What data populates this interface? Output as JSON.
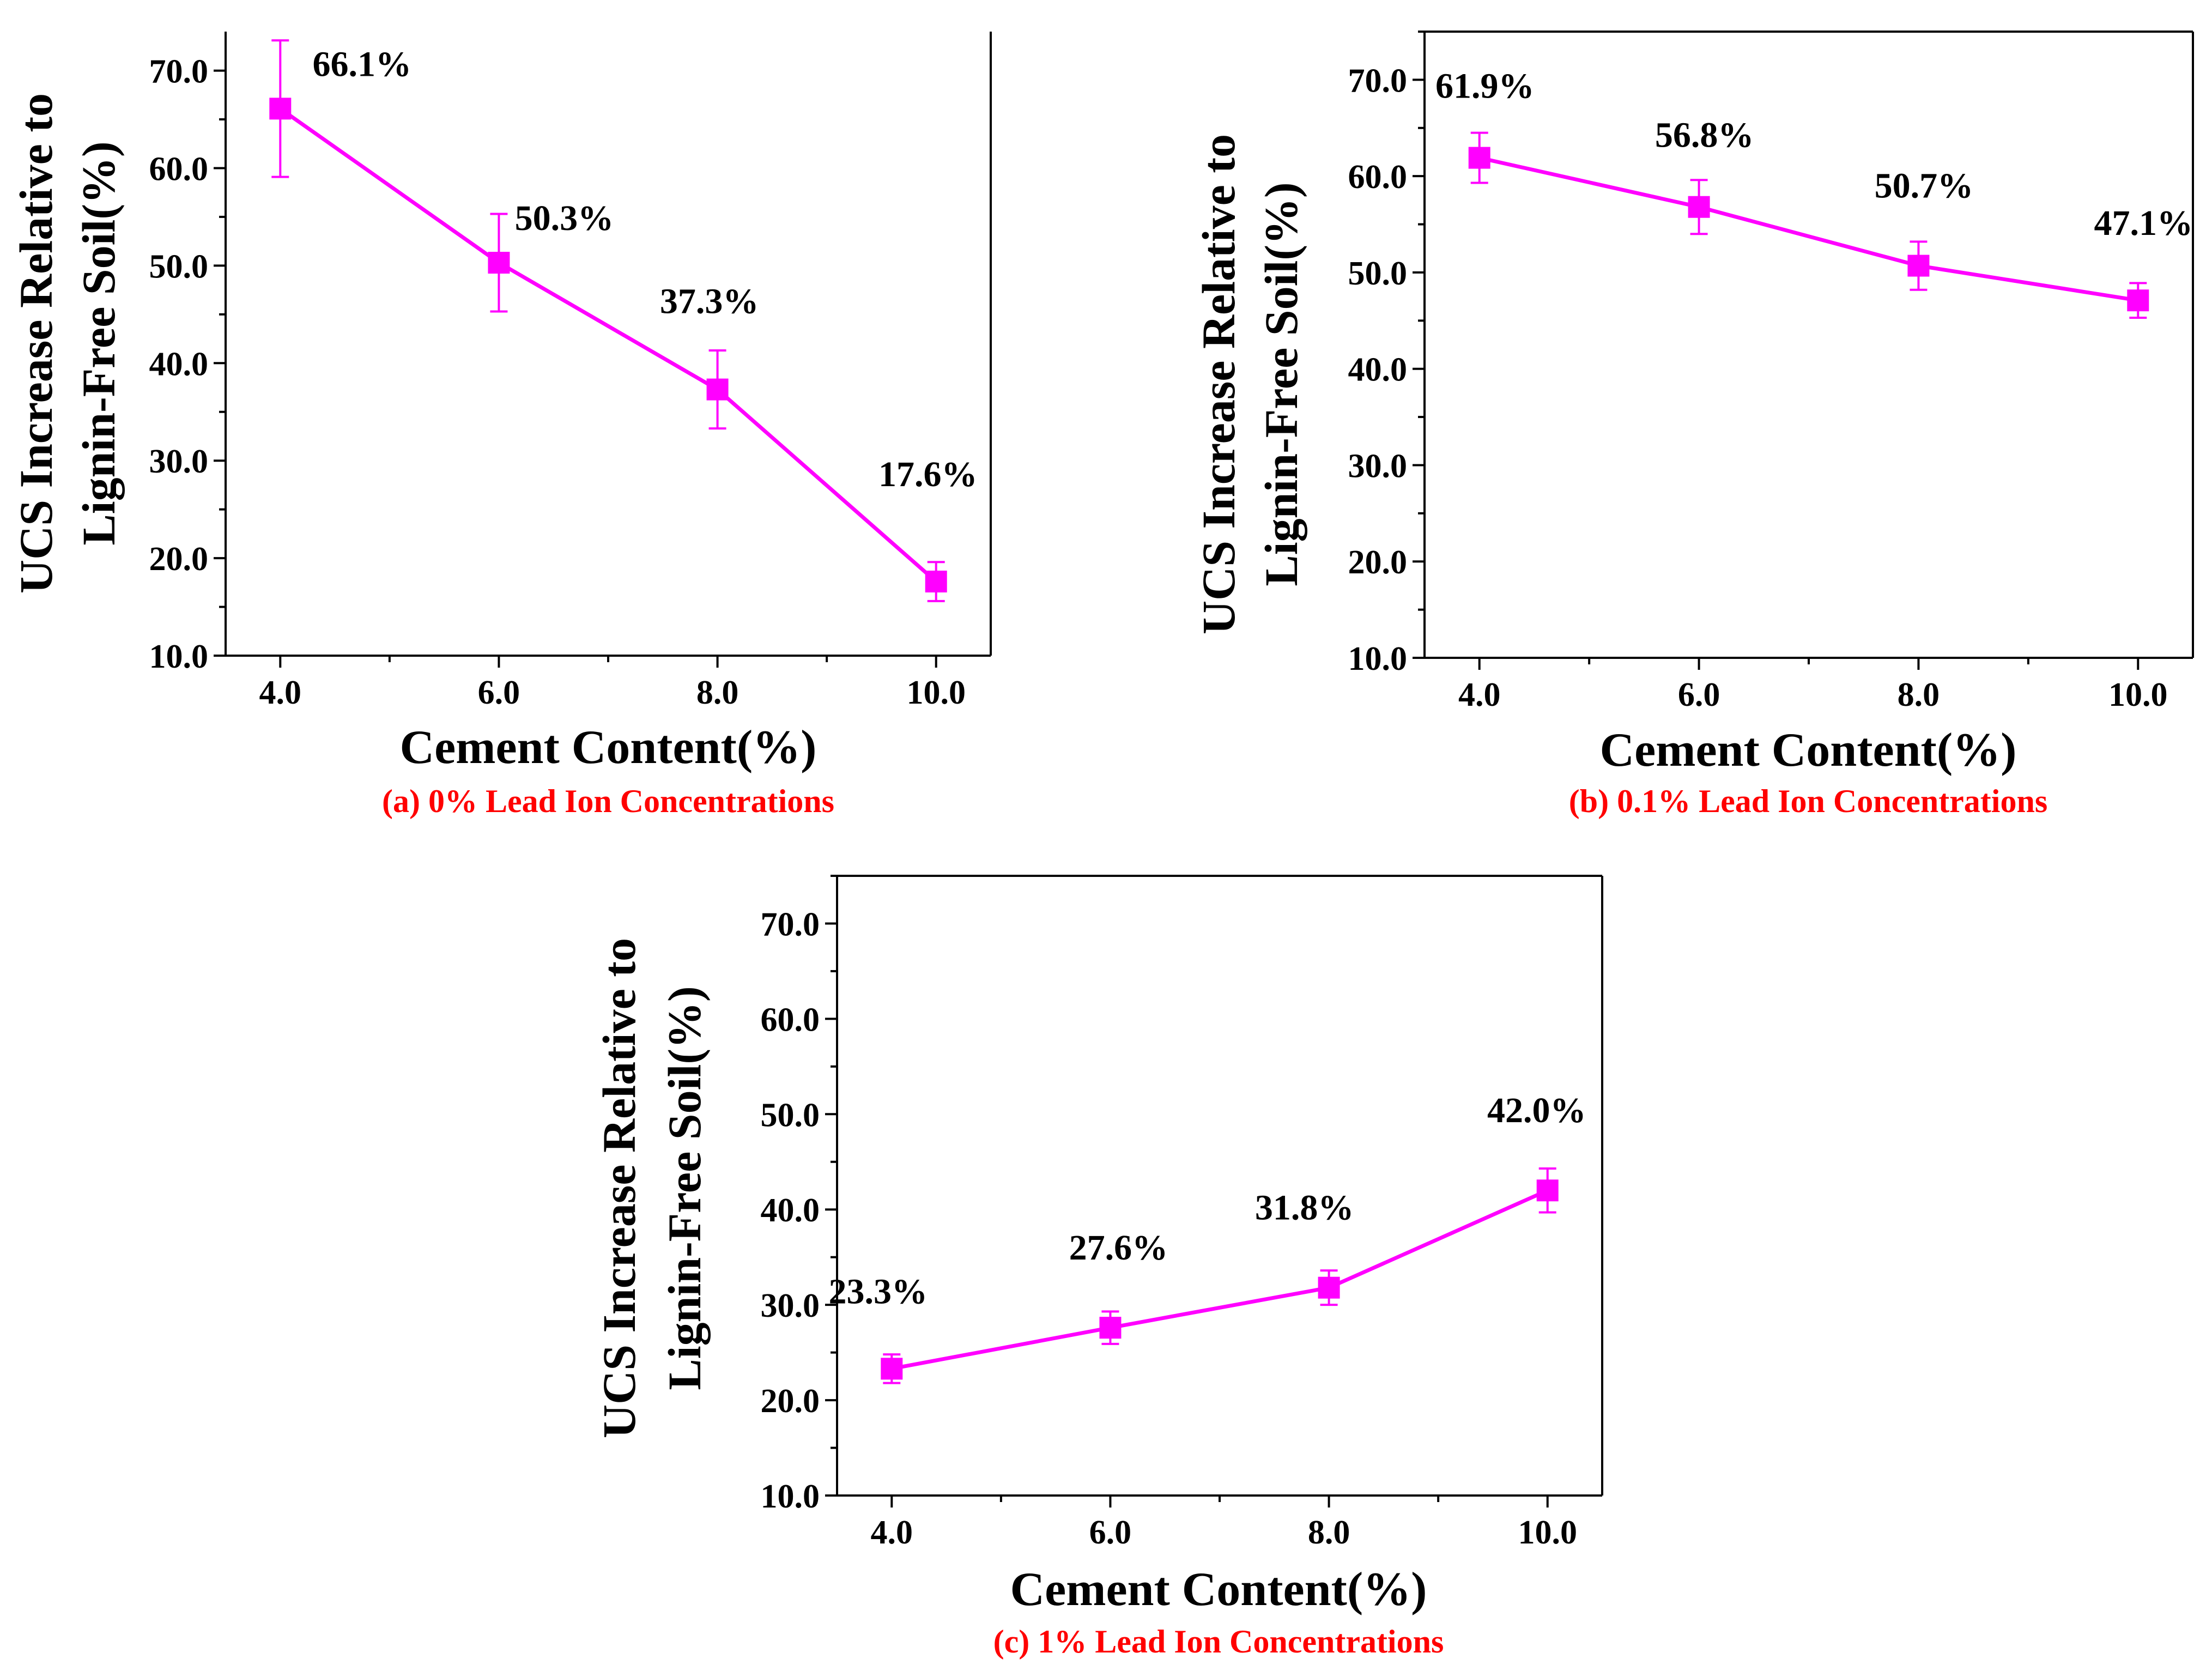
{
  "figure": {
    "panels_count": 3
  },
  "chart_data": [
    {
      "type": "line",
      "id": "a",
      "caption": "(a) 0% Lead Ion Concentrations",
      "xlabel": "Cement Content(%)",
      "ylabel_line1": "UCS Increase Relative to",
      "ylabel_line2": "Lignin-Free Soil(%)",
      "x": [
        4.0,
        6.0,
        8.0,
        10.0
      ],
      "values": [
        66.1,
        50.3,
        37.3,
        17.6
      ],
      "errors": [
        7.0,
        5.0,
        4.0,
        2.0
      ],
      "data_labels": [
        "66.1%",
        "50.3%",
        "37.3%",
        "17.6%"
      ],
      "xticks": [
        "4.0",
        "6.0",
        "8.0",
        "10.0"
      ],
      "yticks": [
        "10.0",
        "20.0",
        "30.0",
        "40.0",
        "50.0",
        "60.0",
        "70.0"
      ],
      "xlim": [
        3.5,
        10.5
      ],
      "ylim": [
        10.0,
        74.0
      ],
      "grid": false,
      "color": "#ff00ff"
    },
    {
      "type": "line",
      "id": "b",
      "caption": "(b) 0.1% Lead Ion Concentrations",
      "xlabel": "Cement Content(%)",
      "ylabel_line1": "UCS Increase Relative to",
      "ylabel_line2": "Lignin-Free Soil(%)",
      "x": [
        4.0,
        6.0,
        8.0,
        10.0
      ],
      "values": [
        61.9,
        56.8,
        50.7,
        47.1
      ],
      "errors": [
        2.6,
        2.8,
        2.5,
        1.8
      ],
      "data_labels": [
        "61.9%",
        "56.8%",
        "50.7%",
        "47.1%"
      ],
      "xticks": [
        "4.0",
        "6.0",
        "8.0",
        "10.0"
      ],
      "yticks": [
        "10.0",
        "20.0",
        "30.0",
        "40.0",
        "50.0",
        "60.0",
        "70.0"
      ],
      "xlim": [
        3.5,
        10.5
      ],
      "ylim": [
        10.0,
        75.0
      ],
      "grid": false,
      "color": "#ff00ff"
    },
    {
      "type": "line",
      "id": "c",
      "caption": "(c) 1% Lead Ion Concentrations",
      "xlabel": "Cement Content(%)",
      "ylabel_line1": "UCS Increase Relative to",
      "ylabel_line2": "Lignin-Free Soil(%)",
      "x": [
        4.0,
        6.0,
        8.0,
        10.0
      ],
      "values": [
        23.3,
        27.6,
        31.8,
        42.0
      ],
      "errors": [
        1.5,
        1.7,
        1.8,
        2.3
      ],
      "data_labels": [
        "23.3%",
        "27.6%",
        "31.8%",
        "42.0%"
      ],
      "xticks": [
        "4.0",
        "6.0",
        "8.0",
        "10.0"
      ],
      "yticks": [
        "10.0",
        "20.0",
        "30.0",
        "40.0",
        "50.0",
        "60.0",
        "70.0"
      ],
      "xlim": [
        3.5,
        10.5
      ],
      "ylim": [
        10.0,
        75.0
      ],
      "grid": false,
      "color": "#ff00ff"
    }
  ],
  "colors": {
    "series": "#ff00ff",
    "caption": "#ff0000",
    "axes": "#000000"
  }
}
